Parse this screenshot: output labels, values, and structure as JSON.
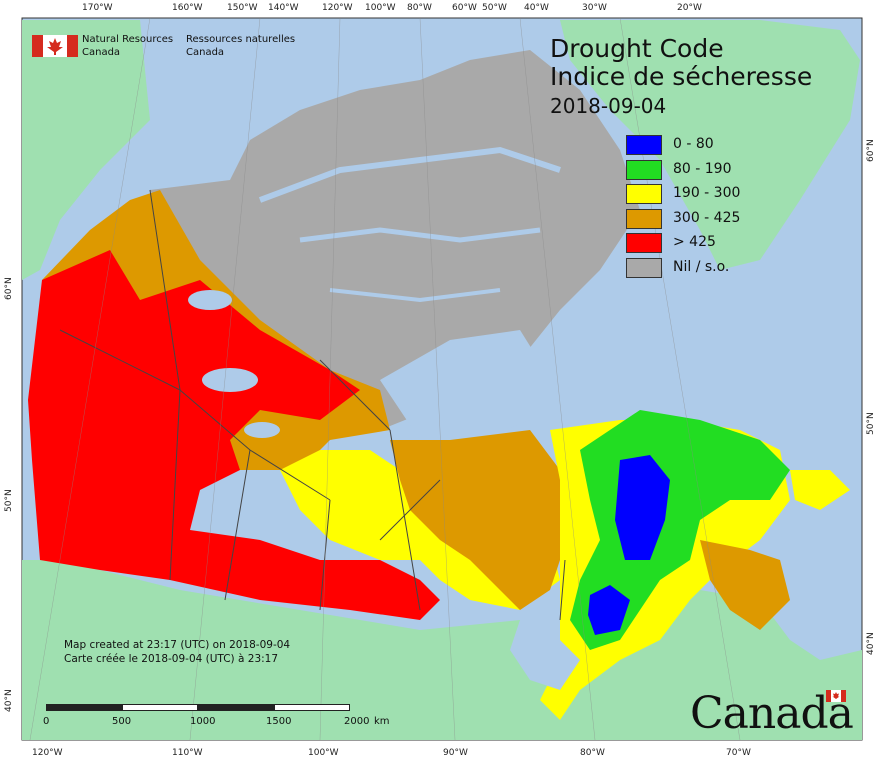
{
  "map": {
    "title_en": "Drought Code",
    "title_fr": "Indice de sécheresse",
    "date": "2018-09-04",
    "legend": [
      {
        "label": "0 - 80",
        "color": "#0000ff"
      },
      {
        "label": "80 - 190",
        "color": "#22dd22"
      },
      {
        "label": "190 - 300",
        "color": "#ffff00"
      },
      {
        "label": "300 - 425",
        "color": "#dd9900"
      },
      {
        "label": "> 425",
        "color": "#ff0000"
      },
      {
        "label": "Nil / s.o.",
        "color": "#a9a9a9"
      }
    ],
    "colors": {
      "ocean": "#aecbe9",
      "foreign_land": "#9fe0b0",
      "outline": "#444444"
    }
  },
  "agency": {
    "line1_en": "Natural Resources",
    "line2_en": "Canada",
    "line1_fr": "Ressources naturelles",
    "line2_fr": "Canada"
  },
  "created": {
    "en": "Map created at 23:17 (UTC) on 2018-09-04",
    "fr": "Carte créée le 2018-09-04 (UTC) à 23:17"
  },
  "scale": {
    "labels": [
      "0",
      "500",
      "1000",
      "1500",
      "2000",
      "km"
    ]
  },
  "wordmark": "Canada",
  "ticks": {
    "top": [
      "170°W",
      "160°W",
      "150°W",
      "140°W",
      "120°W",
      "100°W",
      "80°W",
      "60°W",
      "50°W",
      "40°W",
      "30°W",
      "20°W"
    ],
    "bottom": [
      "120°W",
      "110°W",
      "100°W",
      "90°W",
      "80°W",
      "70°W"
    ],
    "left": [
      "60°N",
      "50°N",
      "40°N"
    ],
    "right": [
      "60°N",
      "50°N",
      "40°N"
    ]
  }
}
